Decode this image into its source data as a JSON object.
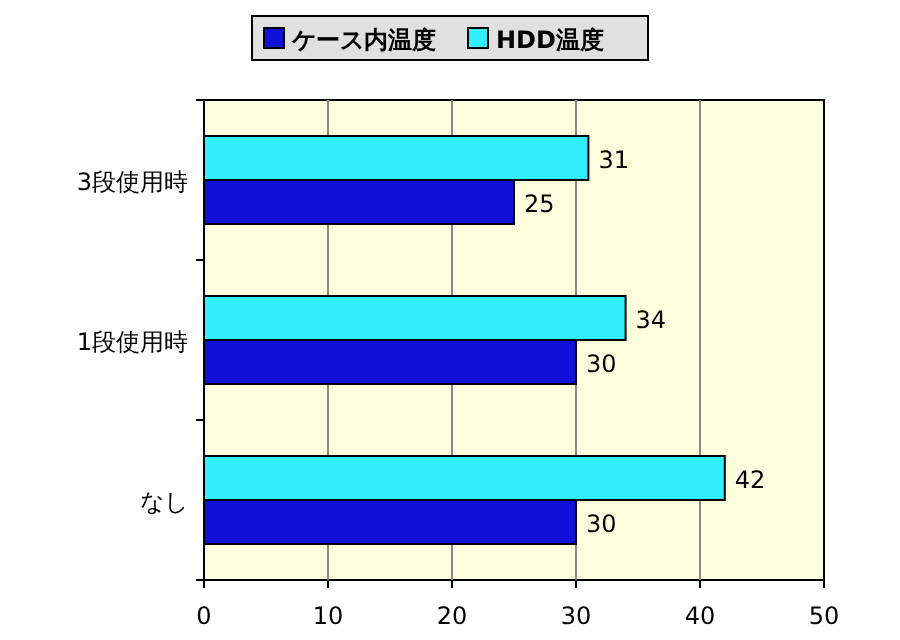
{
  "chart_data": {
    "type": "bar",
    "orientation": "horizontal",
    "categories": [
      "3段使用時",
      "1段使用時",
      "なし"
    ],
    "series": [
      {
        "name": "ケース内温度",
        "color": "#1010d8",
        "values": [
          25,
          30,
          30
        ]
      },
      {
        "name": "HDD温度",
        "color": "#33eeff",
        "values": [
          31,
          34,
          42
        ]
      }
    ],
    "xlim": [
      0,
      50
    ],
    "xticks": [
      0,
      10,
      20,
      30,
      40,
      50
    ],
    "grid": "x",
    "legend": "top",
    "data_labels": true
  }
}
